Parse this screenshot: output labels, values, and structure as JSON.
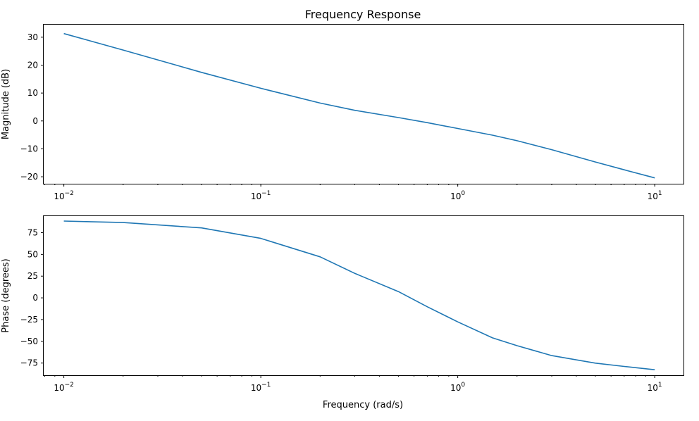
{
  "chart_data": [
    {
      "type": "line",
      "id": "magnitude",
      "title": "Frequency Response",
      "xlabel": "",
      "ylabel": "Magnitude (dB)",
      "xscale": "log",
      "xlim": [
        0.0079,
        14
      ],
      "ylim": [
        -22.5,
        34.5
      ],
      "x_ticks": [
        {
          "value": 0.01,
          "label": "10",
          "exp": "−2"
        },
        {
          "value": 0.1,
          "label": "10",
          "exp": "−1"
        },
        {
          "value": 1,
          "label": "10",
          "exp": "0"
        },
        {
          "value": 10,
          "label": "10",
          "exp": "1"
        }
      ],
      "y_ticks": [
        30,
        20,
        10,
        0,
        -10,
        -20
      ],
      "color": "#1f77b4",
      "series": [
        {
          "name": "magnitude",
          "x": [
            0.01,
            0.02,
            0.05,
            0.1,
            0.2,
            0.3,
            0.5,
            0.7,
            1,
            1.5,
            2,
            3,
            5,
            7,
            10
          ],
          "y": [
            31.3,
            25.4,
            17.4,
            11.7,
            6.4,
            3.8,
            1.2,
            -0.6,
            -2.7,
            -5.1,
            -7.1,
            -10.3,
            -14.7,
            -17.5,
            -20.4
          ]
        }
      ]
    },
    {
      "type": "line",
      "id": "phase",
      "title": "",
      "xlabel": "Frequency (rad/s)",
      "ylabel": "Phase (degrees)",
      "xscale": "log",
      "xlim": [
        0.0079,
        14
      ],
      "ylim": [
        -89,
        94
      ],
      "x_ticks": [
        {
          "value": 0.01,
          "label": "10",
          "exp": "−2"
        },
        {
          "value": 0.1,
          "label": "10",
          "exp": "−1"
        },
        {
          "value": 1,
          "label": "10",
          "exp": "0"
        },
        {
          "value": 10,
          "label": "10",
          "exp": "1"
        }
      ],
      "y_ticks": [
        75,
        50,
        25,
        0,
        -25,
        -50,
        -75
      ],
      "color": "#1f77b4",
      "series": [
        {
          "name": "phase",
          "x": [
            0.01,
            0.02,
            0.05,
            0.1,
            0.2,
            0.3,
            0.5,
            0.7,
            1,
            1.5,
            2,
            3,
            5,
            7,
            10
          ],
          "y": [
            88.3,
            86.6,
            80.5,
            68.4,
            47.2,
            28.2,
            7.2,
            -10.2,
            -27.6,
            -46.0,
            -55.0,
            -66.4,
            -75.1,
            -78.9,
            -82.7
          ]
        }
      ]
    }
  ]
}
